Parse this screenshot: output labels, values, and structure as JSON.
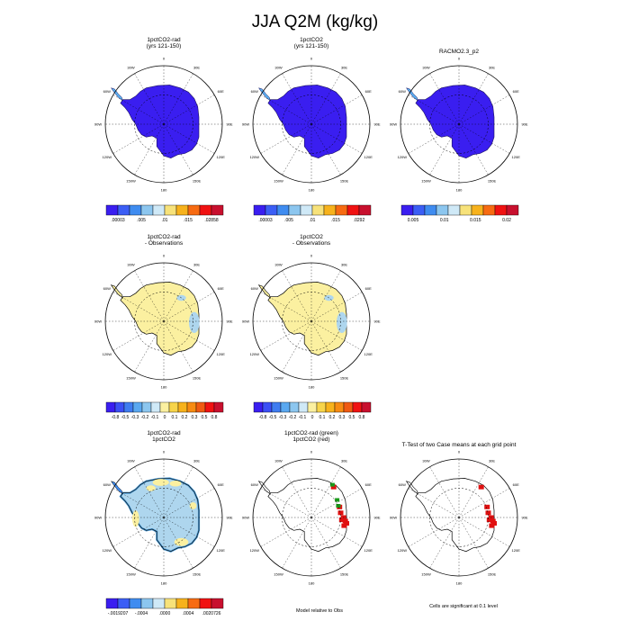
{
  "title": "JJA Q2M (kg/kg)",
  "colors": {
    "continent_abs": "#3a1ef0",
    "diff_warm": "#fbf0a0",
    "diff_cool": "#aed6ee",
    "diff_edge": "#4f9ed8",
    "sig_green": "#1a9a1a",
    "sig_red": "#e01010"
  },
  "panels": [
    {
      "id": "p1",
      "title_lines": [
        "1pctCO2-rad",
        "(yrs 121-150)"
      ],
      "kind": "abs"
    },
    {
      "id": "p2",
      "title_lines": [
        "1pctCO2",
        "(yrs 121-150)"
      ],
      "kind": "abs"
    },
    {
      "id": "p3",
      "title_lines": [
        "RACMO2.3_p2"
      ],
      "kind": "abs"
    },
    {
      "id": "p4",
      "title_lines": [
        "1pctCO2-rad",
        "- Observations"
      ],
      "kind": "diff"
    },
    {
      "id": "p5",
      "title_lines": [
        "1pctCO2",
        "- Observations"
      ],
      "kind": "diff"
    },
    {
      "id": "p7",
      "title_lines": [
        "1pctCO2-rad",
        "1pctCO2"
      ],
      "kind": "diff2"
    },
    {
      "id": "p8",
      "title_lines": [
        "1pctCO2-rad (green)",
        "1pctCO2 (red)"
      ],
      "kind": "sig2"
    },
    {
      "id": "p9",
      "title_lines": [
        "T-Test of two Case means at each grid point"
      ],
      "kind": "sig1"
    }
  ],
  "polar_labels": [
    "0",
    "30E",
    "60E",
    "90E",
    "120E",
    "150E",
    "180",
    "150W",
    "120W",
    "90W",
    "60W",
    "30W"
  ],
  "colorbars": [
    {
      "id": "cb1",
      "colors": [
        "#3a1ef0",
        "#3b5ef5",
        "#3f8cf0",
        "#8cc6ef",
        "#cfe9f7",
        "#f7e27a",
        "#f7b21c",
        "#f76b12",
        "#f01212",
        "#c8102e"
      ],
      "labels": [
        ".00003",
        ".005",
        ".01",
        ".015",
        ".02858"
      ]
    },
    {
      "id": "cb2",
      "colors": [
        "#3a1ef0",
        "#3b5ef5",
        "#3f8cf0",
        "#8cc6ef",
        "#cfe9f7",
        "#f7e27a",
        "#f7b21c",
        "#f76b12",
        "#f01212",
        "#c8102e"
      ],
      "labels": [
        ".00003",
        ".005",
        ".01",
        ".015",
        ".0292"
      ]
    },
    {
      "id": "cb3",
      "colors": [
        "#3a1ef0",
        "#3b5ef5",
        "#3f8cf0",
        "#8cc6ef",
        "#cfe9f7",
        "#f7e27a",
        "#f7b21c",
        "#f76b12",
        "#f01212",
        "#c8102e"
      ],
      "labels": [
        "0.005",
        "0.01",
        "0.015",
        "0.02"
      ]
    },
    {
      "id": "cb4",
      "colors": [
        "#3a1ef0",
        "#3b4ff5",
        "#3f7cf0",
        "#5aa8f0",
        "#8cc6ef",
        "#cfe9f7",
        "#fbf0a0",
        "#f7d44a",
        "#f7b21c",
        "#f78b12",
        "#f05a12",
        "#f01212",
        "#c8102e"
      ],
      "labels": [
        "-0.8",
        "-0.5",
        "-0.3",
        "-0.2",
        "-0.1",
        "0",
        "0.1",
        "0.2",
        "0.3",
        "0.5",
        "0.8"
      ]
    },
    {
      "id": "cb5",
      "colors": [
        "#3a1ef0",
        "#3b4ff5",
        "#3f7cf0",
        "#5aa8f0",
        "#8cc6ef",
        "#cfe9f7",
        "#fbf0a0",
        "#f7d44a",
        "#f7b21c",
        "#f78b12",
        "#f05a12",
        "#f01212",
        "#c8102e"
      ],
      "labels": [
        "-0.8",
        "-0.5",
        "-0.3",
        "-0.2",
        "-0.1",
        "0",
        "0.1",
        "0.2",
        "0.3",
        "0.5",
        "0.8"
      ]
    },
    {
      "id": "cb7",
      "colors": [
        "#3a1ef0",
        "#3b5ef5",
        "#3f8cf0",
        "#8cc6ef",
        "#cfe9f7",
        "#f7e27a",
        "#f7b21c",
        "#f76b12",
        "#f01212",
        "#c8102e"
      ],
      "labels": [
        "-.0019207",
        "-.0004",
        ".0000",
        ".0004",
        ".0020726"
      ]
    }
  ],
  "footnotes": {
    "model_relative": "Model relative to Obs",
    "significance": "Cells are significant at 0.1 level"
  }
}
